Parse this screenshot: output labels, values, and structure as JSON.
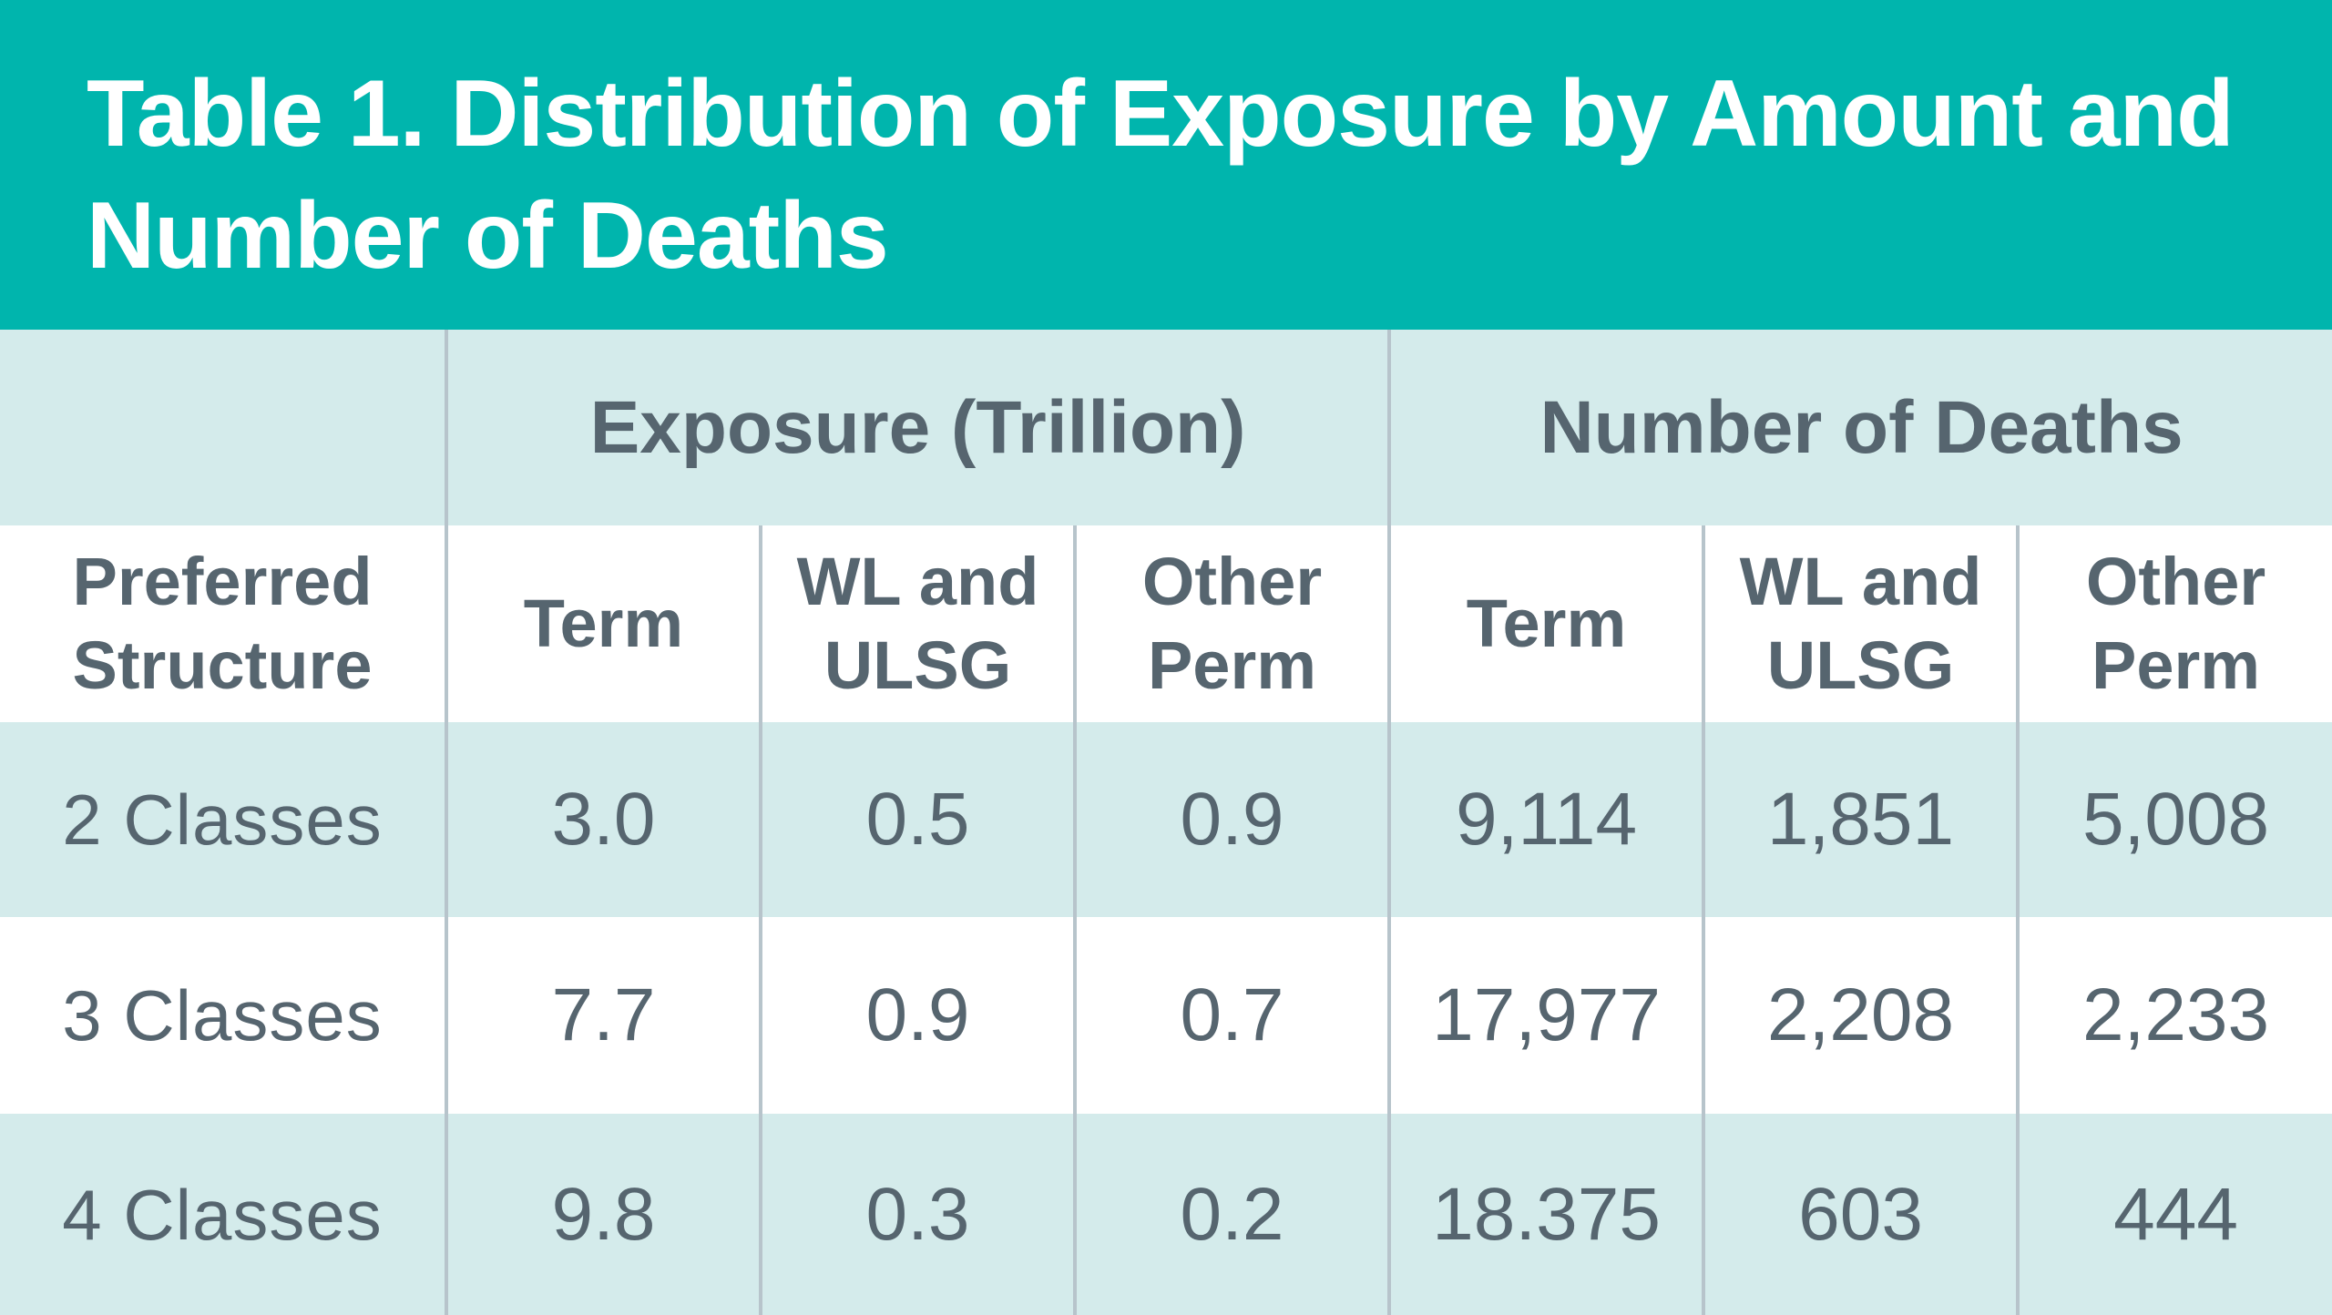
{
  "title": "Table 1.  Distribution of Exposure by Amount and Number of Deaths",
  "colors": {
    "title_background": "#00b5ad",
    "title_text": "#ffffff",
    "shaded_row": "#d4ebeb",
    "body_text": "#56656f",
    "divider": "#b7c4cb"
  },
  "table": {
    "group_headers": {
      "exposure": "Exposure (Trillion)",
      "deaths": "Number of Deaths"
    },
    "sub_headers": {
      "row_label": [
        "Preferred",
        "Structure"
      ],
      "exposure_term": [
        "Term"
      ],
      "exposure_wl_ulsg": [
        "WL and",
        "ULSG"
      ],
      "exposure_other_perm": [
        "Other",
        "Perm"
      ],
      "deaths_term": [
        "Term"
      ],
      "deaths_wl_ulsg": [
        "WL and",
        "ULSG"
      ],
      "deaths_other_perm": [
        "Other",
        "Perm"
      ]
    },
    "rows": [
      {
        "label": "2 Classes",
        "exposure_term": "3.0",
        "exposure_wl_ulsg": "0.5",
        "exposure_other_perm": "0.9",
        "deaths_term": "9,114",
        "deaths_wl_ulsg": "1,851",
        "deaths_other_perm": "5,008"
      },
      {
        "label": "3 Classes",
        "exposure_term": "7.7",
        "exposure_wl_ulsg": "0.9",
        "exposure_other_perm": "0.7",
        "deaths_term": "17,977",
        "deaths_wl_ulsg": "2,208",
        "deaths_other_perm": "2,233"
      },
      {
        "label": "4 Classes",
        "exposure_term": "9.8",
        "exposure_wl_ulsg": "0.3",
        "exposure_other_perm": "0.2",
        "deaths_term": "18.375",
        "deaths_wl_ulsg": "603",
        "deaths_other_perm": "444"
      }
    ]
  }
}
